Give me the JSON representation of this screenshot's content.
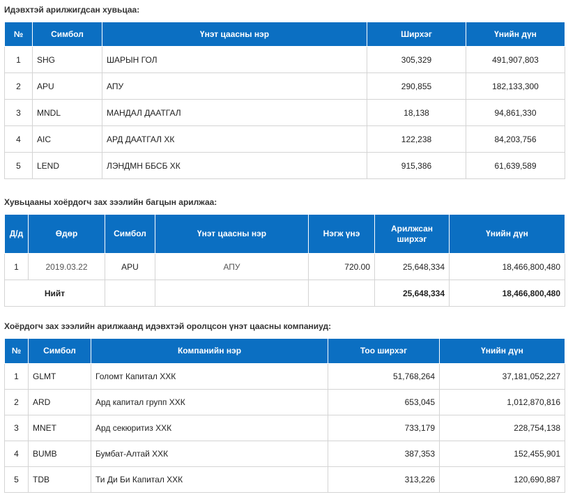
{
  "section1": {
    "title": "Идэвхтэй арилжигдсан хувьцаа:",
    "headers": [
      "№",
      "Симбол",
      "Үнэт цаасны нэр",
      "Ширхэг",
      "Үнийн дүн"
    ],
    "rows": [
      [
        "1",
        "SHG",
        "ШАРЫН ГОЛ",
        "305,329",
        "491,907,803"
      ],
      [
        "2",
        "APU",
        "АПУ",
        "290,855",
        "182,133,300"
      ],
      [
        "3",
        "MNDL",
        "МАНДАЛ ДААТГАЛ",
        "18,138",
        "94,861,330"
      ],
      [
        "4",
        "AIC",
        "АРД ДААТГАЛ ХК",
        "122,238",
        "84,203,756"
      ],
      [
        "5",
        "LEND",
        "ЛЭНДМН ББСБ ХК",
        "915,386",
        "61,639,589"
      ]
    ]
  },
  "section2": {
    "title": "Хувьцааны хоёрдогч зах зээлийн багцын арилжаа:",
    "headers": [
      "Д/д",
      "Өдөр",
      "Симбол",
      "Үнэт цаасны нэр",
      "Нэгж үнэ",
      "Арилжсан ширхэг",
      "Үнийн дүн"
    ],
    "rows": [
      [
        "1",
        "2019.03.22",
        "APU",
        "АПУ",
        "720.00",
        "25,648,334",
        "18,466,800,480"
      ]
    ],
    "total": {
      "label": "Нийт",
      "quantity": "25,648,334",
      "amount": "18,466,800,480"
    }
  },
  "section3": {
    "title": "Хоёрдогч зах зээлийн арилжаанд идэвхтэй оролцсон үнэт цаасны компаниуд:",
    "headers": [
      "№",
      "Симбол",
      "Компанийн нэр",
      "Тоо ширхэг",
      "Үнийн дүн"
    ],
    "rows": [
      [
        "1",
        "GLMT",
        "Голомт Капитал ХХК",
        "51,768,264",
        "37,181,052,227"
      ],
      [
        "2",
        "ARD",
        "Ард капитал групп ХХК",
        "653,045",
        "1,012,870,816"
      ],
      [
        "3",
        "MNET",
        "Ард секюритиз ХХК",
        "733,179",
        "228,754,138"
      ],
      [
        "4",
        "BUMB",
        "Бумбат-Алтай ХХК",
        "387,353",
        "152,455,901"
      ],
      [
        "5",
        "TDB",
        "Ти Ди Би Капитал ХХК",
        "313,226",
        "120,690,887"
      ]
    ]
  },
  "colors": {
    "header_bg": "#0b6fc2",
    "header_text": "#ffffff",
    "border": "#d4d4d4"
  }
}
